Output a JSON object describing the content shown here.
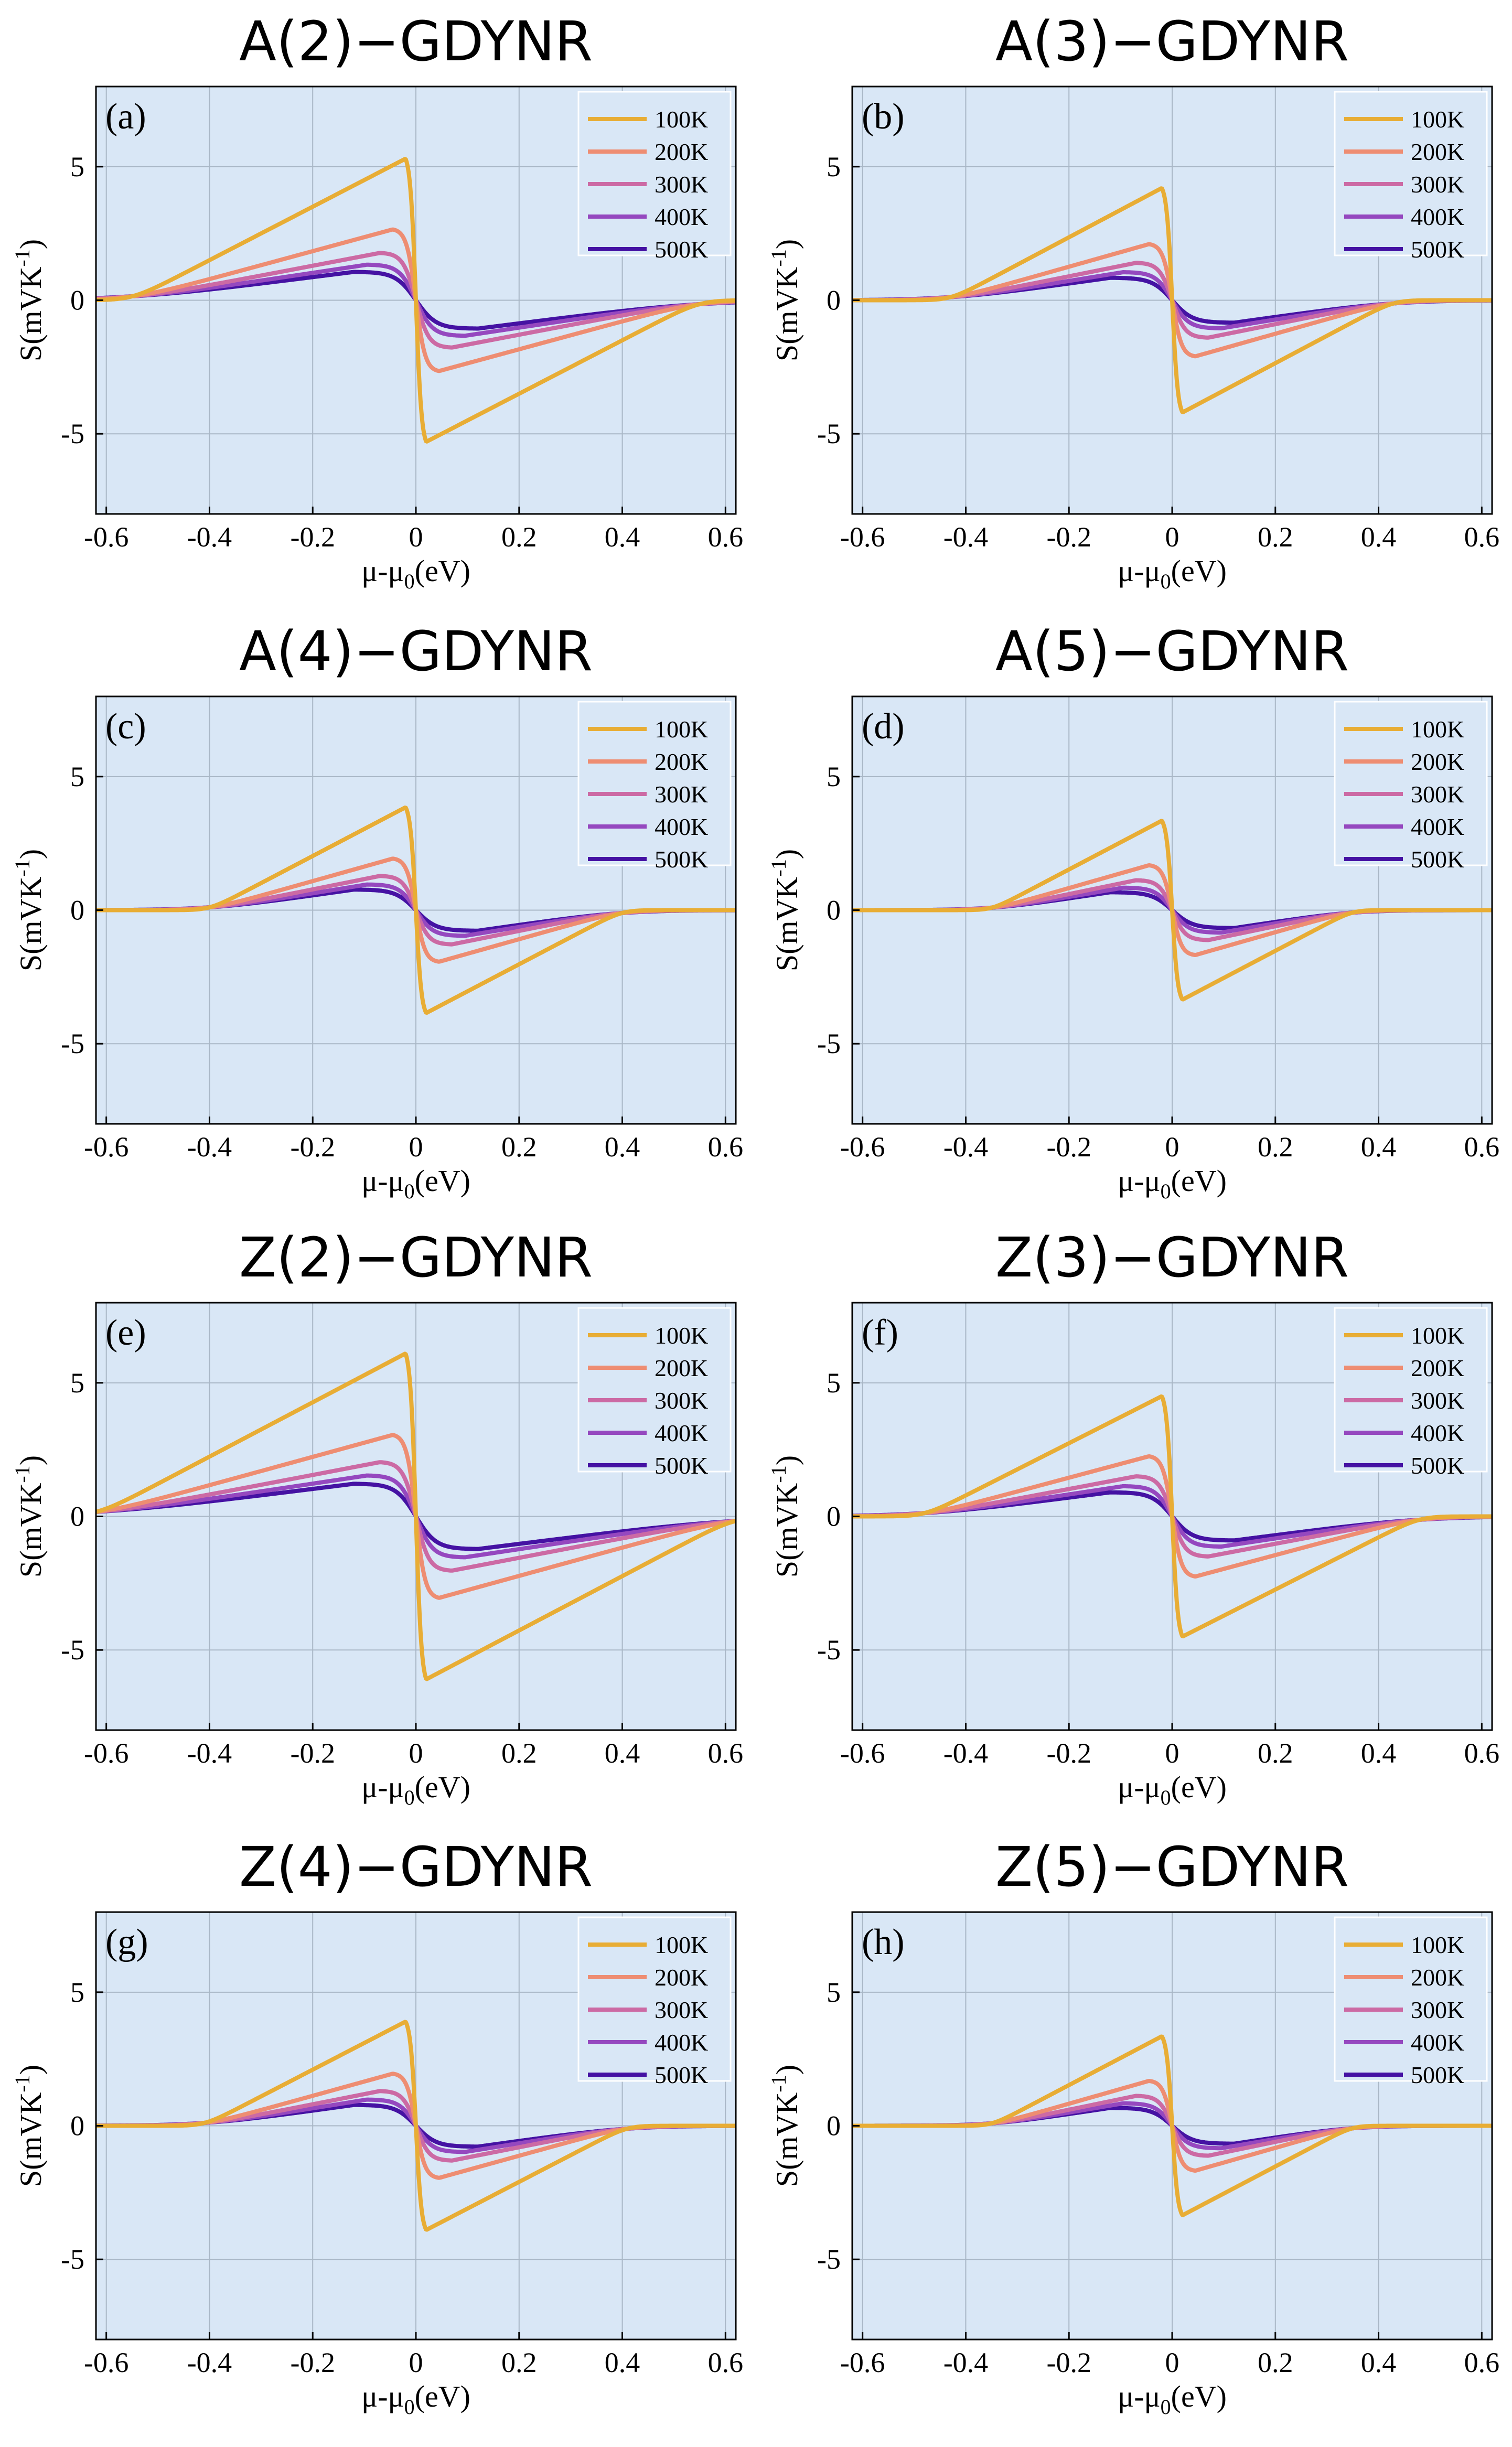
{
  "figure": {
    "background_color": "#d9e7f6",
    "series_colors": {
      "100K": "#e8ad35",
      "200K": "#ee8d72",
      "300K": "#cc6aa4",
      "400K": "#9548bf",
      "500K": "#4512a3"
    }
  },
  "chart_data": [
    {
      "type": "line",
      "title": "A(2)−GDYNR",
      "panel_label": "(a)",
      "xlabel": "μ-μ",
      "xlabel_sub": "0",
      "xlabel_unit": "(eV)",
      "ylabel": "S(mVK",
      "ylabel_sup": "-1",
      "ylabel_close": ")",
      "xlim": [
        -0.62,
        0.62
      ],
      "ylim": [
        -8,
        8
      ],
      "xticks": [
        -0.6,
        -0.4,
        -0.2,
        0,
        0.2,
        0.4,
        0.6
      ],
      "xtick_labels": [
        "-0.6",
        "-0.4",
        "-0.2",
        "0",
        "0.2",
        "0.4",
        "0.6"
      ],
      "yticks": [
        -5,
        0,
        5
      ],
      "ytick_labels": [
        "-5",
        "0",
        "5"
      ],
      "grid": true,
      "legend_position": "top-right",
      "gap_edge_eV": 0.55,
      "peak_S": 5.3,
      "series": [
        {
          "name": "100K",
          "peak": 5.3
        },
        {
          "name": "200K",
          "peak": 2.65
        },
        {
          "name": "300K",
          "peak": 1.77
        },
        {
          "name": "400K",
          "peak": 1.33
        },
        {
          "name": "500K",
          "peak": 1.06
        }
      ]
    },
    {
      "type": "line",
      "title": "A(3)−GDYNR",
      "panel_label": "(b)",
      "xlabel": "μ-μ",
      "xlabel_sub": "0",
      "xlabel_unit": "(eV)",
      "ylabel": "S(mVK",
      "ylabel_sup": "-1",
      "ylabel_close": ")",
      "xlim": [
        -0.62,
        0.62
      ],
      "ylim": [
        -8,
        8
      ],
      "xticks": [
        -0.6,
        -0.4,
        -0.2,
        0,
        0.2,
        0.4,
        0.6
      ],
      "xtick_labels": [
        "-0.6",
        "-0.4",
        "-0.2",
        "0",
        "0.2",
        "0.4",
        "0.6"
      ],
      "yticks": [
        -5,
        0,
        5
      ],
      "ytick_labels": [
        "-5",
        "0",
        "5"
      ],
      "grid": true,
      "legend_position": "top-right",
      "gap_edge_eV": 0.43,
      "peak_S": 4.2,
      "series": [
        {
          "name": "100K",
          "peak": 4.2
        },
        {
          "name": "200K",
          "peak": 2.1
        },
        {
          "name": "300K",
          "peak": 1.4
        },
        {
          "name": "400K",
          "peak": 1.05
        },
        {
          "name": "500K",
          "peak": 0.84
        }
      ]
    },
    {
      "type": "line",
      "title": "A(4)−GDYNR",
      "panel_label": "(c)",
      "xlabel": "μ-μ",
      "xlabel_sub": "0",
      "xlabel_unit": "(eV)",
      "ylabel": "S(mVK",
      "ylabel_sup": "-1",
      "ylabel_close": ")",
      "xlim": [
        -0.62,
        0.62
      ],
      "ylim": [
        -8,
        8
      ],
      "xticks": [
        -0.6,
        -0.4,
        -0.2,
        0,
        0.2,
        0.4,
        0.6
      ],
      "xtick_labels": [
        "-0.6",
        "-0.4",
        "-0.2",
        "0",
        "0.2",
        "0.4",
        "0.6"
      ],
      "yticks": [
        -5,
        0,
        5
      ],
      "ytick_labels": [
        "-5",
        "0",
        "5"
      ],
      "grid": true,
      "legend_position": "top-right",
      "gap_edge_eV": 0.4,
      "peak_S": 3.85,
      "series": [
        {
          "name": "100K",
          "peak": 3.85
        },
        {
          "name": "200K",
          "peak": 1.93
        },
        {
          "name": "300K",
          "peak": 1.28
        },
        {
          "name": "400K",
          "peak": 0.96
        },
        {
          "name": "500K",
          "peak": 0.77
        }
      ]
    },
    {
      "type": "line",
      "title": "A(5)−GDYNR",
      "panel_label": "(d)",
      "xlabel": "μ-μ",
      "xlabel_sub": "0",
      "xlabel_unit": "(eV)",
      "ylabel": "S(mVK",
      "ylabel_sup": "-1",
      "ylabel_close": ")",
      "xlim": [
        -0.62,
        0.62
      ],
      "ylim": [
        -8,
        8
      ],
      "xticks": [
        -0.6,
        -0.4,
        -0.2,
        0,
        0.2,
        0.4,
        0.6
      ],
      "xtick_labels": [
        "-0.6",
        "-0.4",
        "-0.2",
        "0",
        "0.2",
        "0.4",
        "0.6"
      ],
      "yticks": [
        -5,
        0,
        5
      ],
      "ytick_labels": [
        "-5",
        "0",
        "5"
      ],
      "grid": true,
      "legend_position": "top-right",
      "gap_edge_eV": 0.35,
      "peak_S": 3.35,
      "series": [
        {
          "name": "100K",
          "peak": 3.35
        },
        {
          "name": "200K",
          "peak": 1.68
        },
        {
          "name": "300K",
          "peak": 1.12
        },
        {
          "name": "400K",
          "peak": 0.84
        },
        {
          "name": "500K",
          "peak": 0.67
        }
      ]
    },
    {
      "type": "line",
      "title": "Z(2)−GDYNR",
      "panel_label": "(e)",
      "xlabel": "μ-μ",
      "xlabel_sub": "0",
      "xlabel_unit": "(eV)",
      "ylabel": "S(mVK",
      "ylabel_sup": "-1",
      "ylabel_close": ")",
      "xlim": [
        -0.62,
        0.62
      ],
      "ylim": [
        -8,
        8
      ],
      "xticks": [
        -0.6,
        -0.4,
        -0.2,
        0,
        0.2,
        0.4,
        0.6
      ],
      "xtick_labels": [
        "-0.6",
        "-0.4",
        "-0.2",
        "0",
        "0.2",
        "0.4",
        "0.6"
      ],
      "yticks": [
        -5,
        0,
        5
      ],
      "ytick_labels": [
        "-5",
        "0",
        "5"
      ],
      "grid": true,
      "legend_position": "top-right",
      "gap_edge_eV": 0.62,
      "peak_S": 6.1,
      "series": [
        {
          "name": "100K",
          "peak": 6.1
        },
        {
          "name": "200K",
          "peak": 3.05
        },
        {
          "name": "300K",
          "peak": 2.03
        },
        {
          "name": "400K",
          "peak": 1.53
        },
        {
          "name": "500K",
          "peak": 1.22
        }
      ]
    },
    {
      "type": "line",
      "title": "Z(3)−GDYNR",
      "panel_label": "(f)",
      "xlabel": "μ-μ",
      "xlabel_sub": "0",
      "xlabel_unit": "(eV)",
      "ylabel": "S(mVK",
      "ylabel_sup": "-1",
      "ylabel_close": ")",
      "xlim": [
        -0.62,
        0.62
      ],
      "ylim": [
        -8,
        8
      ],
      "xticks": [
        -0.6,
        -0.4,
        -0.2,
        0,
        0.2,
        0.4,
        0.6
      ],
      "xtick_labels": [
        "-0.6",
        "-0.4",
        "-0.2",
        "0",
        "0.2",
        "0.4",
        "0.6"
      ],
      "yticks": [
        -5,
        0,
        5
      ],
      "ytick_labels": [
        "-5",
        "0",
        "5"
      ],
      "grid": true,
      "legend_position": "top-right",
      "gap_edge_eV": 0.48,
      "peak_S": 4.5,
      "series": [
        {
          "name": "100K",
          "peak": 4.5
        },
        {
          "name": "200K",
          "peak": 2.25
        },
        {
          "name": "300K",
          "peak": 1.5
        },
        {
          "name": "400K",
          "peak": 1.13
        },
        {
          "name": "500K",
          "peak": 0.9
        }
      ]
    },
    {
      "type": "line",
      "title": "Z(4)−GDYNR",
      "panel_label": "(g)",
      "xlabel": "μ-μ",
      "xlabel_sub": "0",
      "xlabel_unit": "(eV)",
      "ylabel": "S(mVK",
      "ylabel_sup": "-1",
      "ylabel_close": ")",
      "xlim": [
        -0.62,
        0.62
      ],
      "ylim": [
        -8,
        8
      ],
      "xticks": [
        -0.6,
        -0.4,
        -0.2,
        0,
        0.2,
        0.4,
        0.6
      ],
      "xtick_labels": [
        "-0.6",
        "-0.4",
        "-0.2",
        "0",
        "0.2",
        "0.4",
        "0.6"
      ],
      "yticks": [
        -5,
        0,
        5
      ],
      "ytick_labels": [
        "-5",
        "0",
        "5"
      ],
      "grid": true,
      "legend_position": "top-right",
      "gap_edge_eV": 0.41,
      "peak_S": 3.9,
      "series": [
        {
          "name": "100K",
          "peak": 3.9
        },
        {
          "name": "200K",
          "peak": 1.95
        },
        {
          "name": "300K",
          "peak": 1.3
        },
        {
          "name": "400K",
          "peak": 0.98
        },
        {
          "name": "500K",
          "peak": 0.78
        }
      ]
    },
    {
      "type": "line",
      "title": "Z(5)−GDYNR",
      "panel_label": "(h)",
      "xlabel": "μ-μ",
      "xlabel_sub": "0",
      "xlabel_unit": "(eV)",
      "ylabel": "S(mVK",
      "ylabel_sup": "-1",
      "ylabel_close": ")",
      "xlim": [
        -0.62,
        0.62
      ],
      "ylim": [
        -8,
        8
      ],
      "xticks": [
        -0.6,
        -0.4,
        -0.2,
        0,
        0.2,
        0.4,
        0.6
      ],
      "xtick_labels": [
        "-0.6",
        "-0.4",
        "-0.2",
        "0",
        "0.2",
        "0.4",
        "0.6"
      ],
      "yticks": [
        -5,
        0,
        5
      ],
      "ytick_labels": [
        "-5",
        "0",
        "5"
      ],
      "grid": true,
      "legend_position": "top-right",
      "gap_edge_eV": 0.35,
      "peak_S": 3.35,
      "series": [
        {
          "name": "100K",
          "peak": 3.35
        },
        {
          "name": "200K",
          "peak": 1.68
        },
        {
          "name": "300K",
          "peak": 1.12
        },
        {
          "name": "400K",
          "peak": 0.84
        },
        {
          "name": "500K",
          "peak": 0.67
        }
      ]
    }
  ]
}
